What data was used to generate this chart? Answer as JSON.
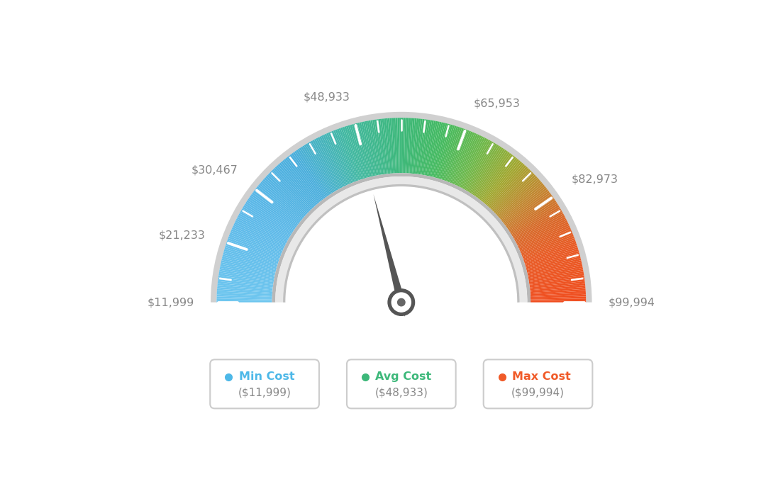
{
  "min_val": 11999,
  "max_val": 99994,
  "avg_val": 48933,
  "label_values": [
    11999,
    21233,
    30467,
    48933,
    65953,
    82973,
    99994
  ],
  "label_texts": [
    "$11,999",
    "$21,233",
    "$30,467",
    "$48,933",
    "$65,953",
    "$82,973",
    "$99,994"
  ],
  "legend": [
    {
      "label": "Min Cost",
      "value": "($11,999)",
      "color": "#4db8e8"
    },
    {
      "label": "Avg Cost",
      "value": "($48,933)",
      "color": "#3db87a"
    },
    {
      "label": "Max Cost",
      "value": "($99,994)",
      "color": "#f05a28"
    }
  ],
  "color_stops": [
    [
      0.0,
      "#6ec6ef"
    ],
    [
      0.18,
      "#5bb8e8"
    ],
    [
      0.3,
      "#4aaedc"
    ],
    [
      0.4,
      "#42b8a0"
    ],
    [
      0.5,
      "#3db87a"
    ],
    [
      0.58,
      "#45ba60"
    ],
    [
      0.65,
      "#6db84a"
    ],
    [
      0.72,
      "#a0a830"
    ],
    [
      0.78,
      "#c08830"
    ],
    [
      0.84,
      "#d86828"
    ],
    [
      0.9,
      "#e85a24"
    ],
    [
      1.0,
      "#f04e20"
    ]
  ],
  "background_color": "#ffffff",
  "needle_color": "#555555",
  "label_color": "#888888",
  "tick_color": "#ffffff"
}
